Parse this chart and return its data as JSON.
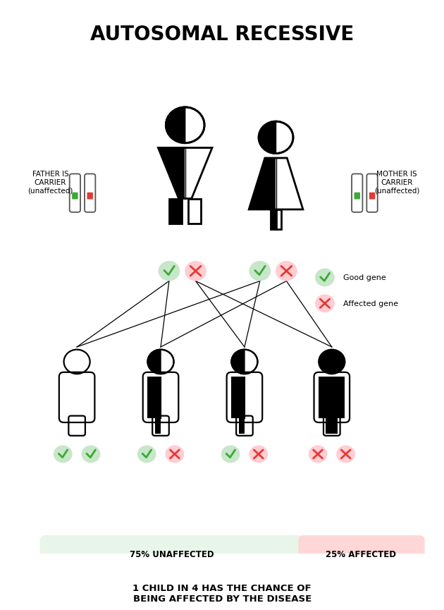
{
  "title": "AUTOSOMAL RECESSIVE",
  "title_fontsize": 20,
  "bg_color": "#ffffff",
  "fig_width": 6.16,
  "fig_height": 8.42,
  "bottom_text": "1 CHILD IN 4 HAS THE CHANCE OF\nBEING AFFECTED BY THE DISEASE",
  "unaffected_label": "75% UNAFFECTED",
  "affected_label": "25% AFFECTED",
  "father_label": "FATHER IS\nCARRIER\n(unaffected)",
  "mother_label": "MOTHER IS\nCARRIER\n(unaffected)",
  "good_gene_label": "Good gene",
  "affected_gene_label": "Affected gene",
  "green_color": "#3aaa35",
  "red_color": "#e53935",
  "light_green_bg": "#e8f5e9",
  "light_red_bg": "#ffd7d7",
  "light_blue_bg": "#cceeff",
  "black_color": "#000000"
}
